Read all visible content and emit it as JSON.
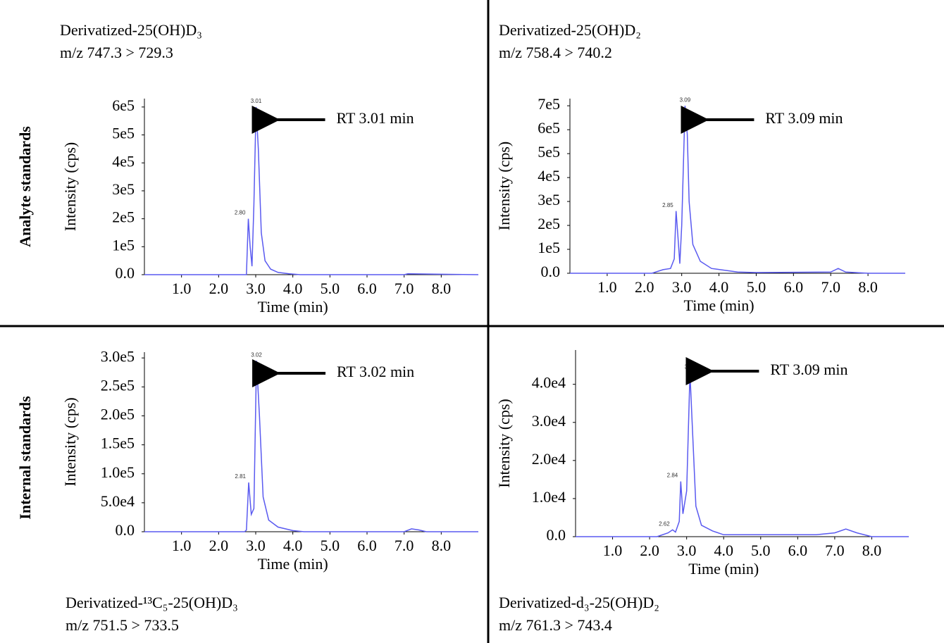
{
  "row_labels": [
    "Analyte standards",
    "Internal standards"
  ],
  "chart_data": [
    {
      "type": "line",
      "title": "Derivatized-25(OH)D₃",
      "subtitle": "m/z 747.3 > 729.3",
      "x_label": "Time (min)",
      "y_label": "Intensity (cps)",
      "annotation": "RT 3.01 min",
      "annotation_x": 3.01,
      "color": "#5a5af0",
      "x": [
        0,
        2.7,
        2.75,
        2.8,
        2.85,
        2.9,
        2.95,
        3.01,
        3.07,
        3.15,
        3.25,
        3.4,
        3.6,
        3.9,
        4.2,
        7.0,
        7.1,
        9
      ],
      "values": [
        0,
        0,
        0,
        200000,
        100000,
        30000,
        250000,
        600000,
        450000,
        150000,
        50000,
        20000,
        8000,
        3000,
        0,
        0,
        3000,
        0
      ],
      "peak_labels": [
        {
          "value": 3.01,
          "label": "3.01"
        },
        {
          "value": 2.8,
          "label": "2.80"
        }
      ],
      "xlim": [
        0,
        9
      ],
      "ylim": [
        0,
        630000
      ],
      "xticks": [
        {
          "value": 1,
          "label": "1.0"
        },
        {
          "value": 2,
          "label": "2.0"
        },
        {
          "value": 3,
          "label": "3.0"
        },
        {
          "value": 4,
          "label": "4.0"
        },
        {
          "value": 5,
          "label": "5.0"
        },
        {
          "value": 6,
          "label": "6.0"
        },
        {
          "value": 7,
          "label": "7.0"
        },
        {
          "value": 8,
          "label": "8.0"
        }
      ],
      "yticks": [
        {
          "value": 0,
          "label": "0.0"
        },
        {
          "value": 100000,
          "label": "1e5"
        },
        {
          "value": 200000,
          "label": "2e5"
        },
        {
          "value": 300000,
          "label": "3e5"
        },
        {
          "value": 400000,
          "label": "4e5"
        },
        {
          "value": 500000,
          "label": "5e5"
        },
        {
          "value": 600000,
          "label": "6e5"
        }
      ]
    },
    {
      "type": "line",
      "title": "Derivatized-25(OH)D₂",
      "subtitle": "m/z 758.4 > 740.2",
      "x_label": "Time (min)",
      "y_label": "Intensity (cps)",
      "annotation": "RT 3.09 min",
      "annotation_x": 3.09,
      "color": "#5a5af0",
      "x": [
        0,
        2.2,
        2.5,
        2.7,
        2.8,
        2.85,
        2.9,
        2.95,
        3.0,
        3.09,
        3.15,
        3.2,
        3.3,
        3.5,
        3.8,
        4.5,
        5.0,
        7.0,
        7.2,
        7.4,
        8.0,
        9
      ],
      "values": [
        0,
        0,
        15000,
        20000,
        60000,
        260000,
        150000,
        40000,
        200000,
        700000,
        580000,
        300000,
        120000,
        50000,
        20000,
        5000,
        3000,
        5000,
        20000,
        5000,
        0,
        0
      ],
      "peak_labels": [
        {
          "value": 3.09,
          "label": "3.09"
        },
        {
          "value": 2.85,
          "label": "2.85"
        }
      ],
      "xlim": [
        0,
        9
      ],
      "ylim": [
        0,
        730000
      ],
      "xticks": [
        {
          "value": 1,
          "label": "1.0"
        },
        {
          "value": 2,
          "label": "2.0"
        },
        {
          "value": 3,
          "label": "3.0"
        },
        {
          "value": 4,
          "label": "4.0"
        },
        {
          "value": 5,
          "label": "5.0"
        },
        {
          "value": 6,
          "label": "6.0"
        },
        {
          "value": 7,
          "label": "7.0"
        },
        {
          "value": 8,
          "label": "8.0"
        }
      ],
      "yticks": [
        {
          "value": 0,
          "label": "0.0"
        },
        {
          "value": 100000,
          "label": "1e5"
        },
        {
          "value": 200000,
          "label": "2e5"
        },
        {
          "value": 300000,
          "label": "3e5"
        },
        {
          "value": 400000,
          "label": "4e5"
        },
        {
          "value": 500000,
          "label": "5e5"
        },
        {
          "value": 600000,
          "label": "6e5"
        },
        {
          "value": 700000,
          "label": "7e5"
        }
      ]
    },
    {
      "type": "line",
      "title": "Derivatized-¹³C₅-25(OH)D₃",
      "subtitle": "m/z 751.5 > 733.5",
      "x_label": "Time (min)",
      "y_label": "Intensity (cps)",
      "annotation": "RT 3.02 min",
      "annotation_x": 3.02,
      "color": "#5a5af0",
      "x": [
        0,
        2.7,
        2.75,
        2.81,
        2.88,
        2.95,
        3.02,
        3.1,
        3.2,
        3.35,
        3.6,
        4.0,
        4.3,
        7.0,
        7.2,
        7.4,
        7.6,
        9
      ],
      "values": [
        0,
        0,
        3000,
        85000,
        30000,
        40000,
        295000,
        200000,
        60000,
        20000,
        8000,
        2000,
        0,
        0,
        5000,
        3000,
        0,
        0
      ],
      "peak_labels": [
        {
          "value": 3.02,
          "label": "3.02"
        },
        {
          "value": 2.81,
          "label": "2.81"
        }
      ],
      "xlim": [
        0,
        9
      ],
      "ylim": [
        0,
        310000
      ],
      "xticks": [
        {
          "value": 1,
          "label": "1.0"
        },
        {
          "value": 2,
          "label": "2.0"
        },
        {
          "value": 3,
          "label": "3.0"
        },
        {
          "value": 4,
          "label": "4.0"
        },
        {
          "value": 5,
          "label": "5.0"
        },
        {
          "value": 6,
          "label": "6.0"
        },
        {
          "value": 7,
          "label": "7.0"
        },
        {
          "value": 8,
          "label": "8.0"
        }
      ],
      "yticks": [
        {
          "value": 0,
          "label": "0.0"
        },
        {
          "value": 50000,
          "label": "5.0e4"
        },
        {
          "value": 100000,
          "label": "1.0e5"
        },
        {
          "value": 150000,
          "label": "1.5e5"
        },
        {
          "value": 200000,
          "label": "2.0e5"
        },
        {
          "value": 250000,
          "label": "2.5e5"
        },
        {
          "value": 300000,
          "label": "3.0e5"
        }
      ]
    },
    {
      "type": "line",
      "title": "Derivatized-d₃-25(OH)D₂",
      "subtitle": "m/z 761.3 > 743.4",
      "x_label": "Time (min)",
      "y_label": "Intensity (cps)",
      "annotation": "RT 3.09 min",
      "annotation_x": 3.09,
      "color": "#5a5af0",
      "x": [
        0,
        2.2,
        2.5,
        2.62,
        2.7,
        2.8,
        2.84,
        2.9,
        3.0,
        3.09,
        3.15,
        3.25,
        3.4,
        3.7,
        4.0,
        6.5,
        7.0,
        7.3,
        7.6,
        8.0,
        9
      ],
      "values": [
        0,
        0,
        1000,
        1800,
        1200,
        4000,
        14500,
        6000,
        12000,
        43000,
        30000,
        8000,
        3000,
        1500,
        500,
        500,
        1000,
        2000,
        1000,
        0,
        0
      ],
      "peak_labels": [
        {
          "value": 3.09,
          "label": "3.09"
        },
        {
          "value": 2.84,
          "label": "2.84"
        },
        {
          "value": 2.62,
          "label": "2.62"
        }
      ],
      "xlim": [
        0,
        9
      ],
      "ylim": [
        0,
        49000
      ],
      "xticks": [
        {
          "value": 1,
          "label": "1.0"
        },
        {
          "value": 2,
          "label": "2.0"
        },
        {
          "value": 3,
          "label": "3.0"
        },
        {
          "value": 4,
          "label": "4.0"
        },
        {
          "value": 5,
          "label": "5.0"
        },
        {
          "value": 6,
          "label": "6.0"
        },
        {
          "value": 7,
          "label": "7.0"
        },
        {
          "value": 8,
          "label": "8.0"
        }
      ],
      "yticks": [
        {
          "value": 0,
          "label": "0.0"
        },
        {
          "value": 10000,
          "label": "1.0e4"
        },
        {
          "value": 20000,
          "label": "2.0e4"
        },
        {
          "value": 30000,
          "label": "3.0e4"
        },
        {
          "value": 40000,
          "label": "4.0e4"
        }
      ]
    }
  ]
}
